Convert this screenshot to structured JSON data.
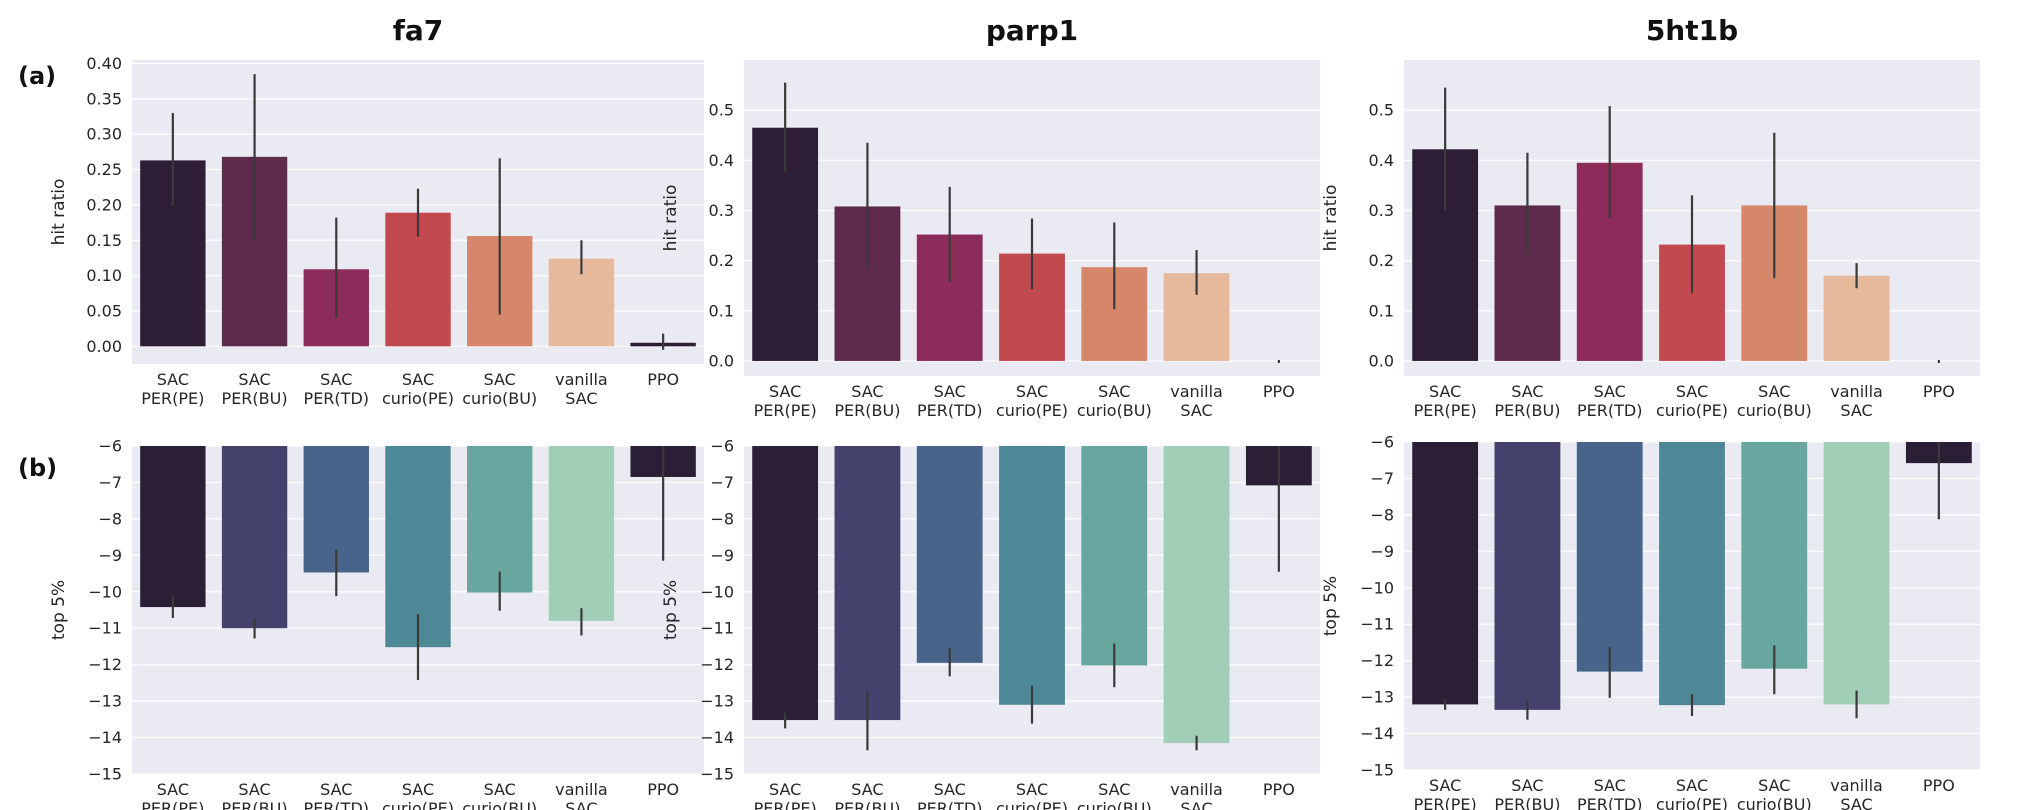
{
  "row_labels": [
    "(a)",
    "(b)"
  ],
  "palettes": {
    "hit": [
      "#2d1e35",
      "#5e2a4c",
      "#8c2c5a",
      "#c24a4f",
      "#d6876a",
      "#e6b99c",
      "#2d1e35"
    ],
    "top": [
      "#2b1f36",
      "#45416d",
      "#49648a",
      "#4e8796",
      "#67a7a0",
      "#a0ceb6",
      "#2b1f36"
    ]
  },
  "chart_data": [
    {
      "type": "bar",
      "row": "a",
      "target": "fa7",
      "title": "fa7",
      "ylabel": "hit ratio",
      "categories": [
        "SAC\nPER(PE)",
        "SAC\nPER(BU)",
        "SAC\nPER(TD)",
        "SAC\ncurio(PE)",
        "SAC\ncurio(BU)",
        "vanilla\nSAC",
        "PPO"
      ],
      "values": [
        0.263,
        0.268,
        0.109,
        0.189,
        0.156,
        0.124,
        0.005
      ],
      "err_low": [
        0.198,
        0.15,
        0.04,
        0.155,
        0.045,
        0.102,
        -0.005
      ],
      "err_high": [
        0.33,
        0.385,
        0.182,
        0.223,
        0.266,
        0.15,
        0.018
      ],
      "ylim": [
        -0.025,
        0.405
      ],
      "yticks": [
        0.0,
        0.05,
        0.1,
        0.15,
        0.2,
        0.25,
        0.3,
        0.35,
        0.4
      ],
      "ytick_labels": [
        "0.00",
        "0.05",
        "0.10",
        "0.15",
        "0.20",
        "0.25",
        "0.30",
        "0.35",
        "0.40"
      ]
    },
    {
      "type": "bar",
      "row": "a",
      "target": "parp1",
      "title": "parp1",
      "ylabel": "hit ratio",
      "categories": [
        "SAC\nPER(PE)",
        "SAC\nPER(BU)",
        "SAC\nPER(TD)",
        "SAC\ncurio(PE)",
        "SAC\ncurio(BU)",
        "vanilla\nSAC",
        "PPO"
      ],
      "values": [
        0.465,
        0.308,
        0.252,
        0.214,
        0.187,
        0.175,
        0.0
      ],
      "err_low": [
        0.378,
        0.18,
        0.158,
        0.143,
        0.103,
        0.132,
        -0.004
      ],
      "err_high": [
        0.555,
        0.435,
        0.347,
        0.284,
        0.276,
        0.221,
        0.002
      ],
      "ylim": [
        -0.03,
        0.6
      ],
      "yticks": [
        0.0,
        0.1,
        0.2,
        0.3,
        0.4,
        0.5
      ],
      "ytick_labels": [
        "0.0",
        "0.1",
        "0.2",
        "0.3",
        "0.4",
        "0.5"
      ]
    },
    {
      "type": "bar",
      "row": "a",
      "target": "5ht1b",
      "title": "5ht1b",
      "ylabel": "hit ratio",
      "categories": [
        "SAC\nPER(PE)",
        "SAC\nPER(BU)",
        "SAC\nPER(TD)",
        "SAC\ncurio(PE)",
        "SAC\ncurio(BU)",
        "vanilla\nSAC",
        "PPO"
      ],
      "values": [
        0.422,
        0.31,
        0.395,
        0.232,
        0.31,
        0.17,
        0.0
      ],
      "err_low": [
        0.3,
        0.215,
        0.285,
        0.135,
        0.165,
        0.145,
        -0.004
      ],
      "err_high": [
        0.545,
        0.415,
        0.508,
        0.33,
        0.455,
        0.195,
        0.002
      ],
      "ylim": [
        -0.03,
        0.6
      ],
      "yticks": [
        0.0,
        0.1,
        0.2,
        0.3,
        0.4,
        0.5
      ],
      "ytick_labels": [
        "0.0",
        "0.1",
        "0.2",
        "0.3",
        "0.4",
        "0.5"
      ]
    },
    {
      "type": "bar",
      "row": "b",
      "target": "fa7",
      "ylabel": "top 5%",
      "categories": [
        "SAC\nPER(PE)",
        "SAC\nPER(BU)",
        "SAC\nPER(TD)",
        "SAC\ncurio(PE)",
        "SAC\ncurio(BU)",
        "vanilla\nSAC",
        "PPO"
      ],
      "values": [
        -10.42,
        -11.0,
        -9.47,
        -11.52,
        -10.02,
        -10.8,
        -6.85
      ],
      "err_low": [
        -10.72,
        -11.28,
        -10.12,
        -12.42,
        -10.52,
        -11.2,
        -9.15
      ],
      "err_high": [
        -10.12,
        -10.72,
        -8.85,
        -10.62,
        -9.45,
        -10.45,
        -6.0
      ],
      "ylim": [
        -15.0,
        -6.0
      ],
      "baseline": -6.0,
      "yticks": [
        -15,
        -14,
        -13,
        -12,
        -11,
        -10,
        -9,
        -8,
        -7,
        -6
      ],
      "ytick_labels": [
        "−15",
        "−14",
        "−13",
        "−12",
        "−11",
        "−10",
        "−9",
        "−8",
        "−7",
        "−6"
      ]
    },
    {
      "type": "bar",
      "row": "b",
      "target": "parp1",
      "ylabel": "top 5%",
      "categories": [
        "SAC\nPER(PE)",
        "SAC\nPER(BU)",
        "SAC\nPER(TD)",
        "SAC\ncurio(PE)",
        "SAC\ncurio(BU)",
        "vanilla\nSAC",
        "PPO"
      ],
      "values": [
        -13.52,
        -13.52,
        -11.95,
        -13.1,
        -12.02,
        -14.15,
        -7.08
      ],
      "err_low": [
        -13.75,
        -14.35,
        -12.32,
        -13.62,
        -12.62,
        -14.35,
        -9.45
      ],
      "err_high": [
        -13.32,
        -12.72,
        -11.55,
        -12.58,
        -11.42,
        -13.95,
        -6.0
      ],
      "ylim": [
        -15.0,
        -6.0
      ],
      "baseline": -6.0,
      "yticks": [
        -15,
        -14,
        -13,
        -12,
        -11,
        -10,
        -9,
        -8,
        -7,
        -6
      ],
      "ytick_labels": [
        "−15",
        "−14",
        "−13",
        "−12",
        "−11",
        "−10",
        "−9",
        "−8",
        "−7",
        "−6"
      ]
    },
    {
      "type": "bar",
      "row": "b",
      "target": "5ht1b",
      "ylabel": "top 5%",
      "categories": [
        "SAC\nPER(PE)",
        "SAC\nPER(BU)",
        "SAC\nPER(TD)",
        "SAC\ncurio(PE)",
        "SAC\ncurio(BU)",
        "vanilla\nSAC",
        "PPO"
      ],
      "values": [
        -13.2,
        -13.35,
        -12.3,
        -13.22,
        -12.22,
        -13.2,
        -6.58
      ],
      "err_low": [
        -13.35,
        -13.62,
        -13.02,
        -13.52,
        -12.92,
        -13.58,
        -8.12
      ],
      "err_high": [
        -13.05,
        -13.1,
        -11.62,
        -12.92,
        -11.58,
        -12.82,
        -6.0
      ],
      "ylim": [
        -15.0,
        -6.0
      ],
      "baseline": -6.0,
      "yticks": [
        -15,
        -14,
        -13,
        -12,
        -11,
        -10,
        -9,
        -8,
        -7,
        -6
      ],
      "ytick_labels": [
        "−15",
        "−14",
        "−13",
        "−12",
        "−11",
        "−10",
        "−9",
        "−8",
        "−7",
        "−6"
      ]
    }
  ]
}
